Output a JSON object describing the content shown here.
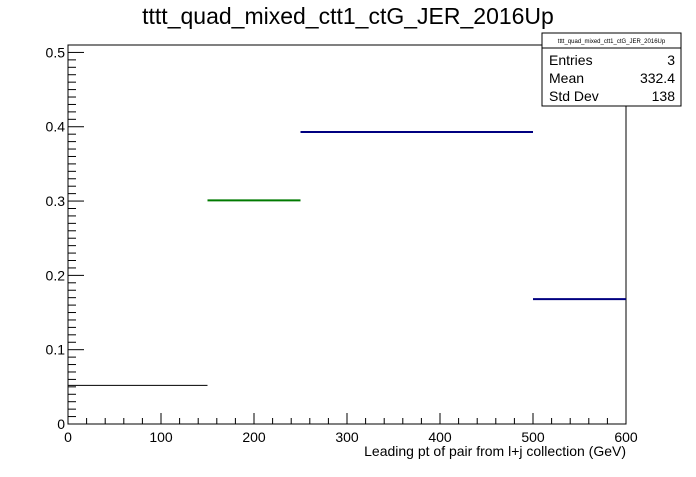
{
  "chart_data": {
    "type": "bar",
    "title": "tttt_quad_mixed_ctt1_ctG_JER_2016Up",
    "xlabel": "Leading pt of pair from l+j collection (GeV)",
    "ylabel": "",
    "xlim": [
      0,
      600
    ],
    "ylim": [
      0,
      0.51
    ],
    "x_ticks": [
      0,
      100,
      200,
      300,
      400,
      500,
      600
    ],
    "x_tick_labels": [
      "0",
      "100",
      "200",
      "300",
      "400",
      "500",
      "600"
    ],
    "y_ticks": [
      0,
      0.1,
      0.2,
      0.3,
      0.4,
      0.5
    ],
    "y_tick_labels": [
      "0",
      "0.1",
      "0.2",
      "0.3",
      "0.4",
      "0.5"
    ],
    "bins": [
      {
        "x0": 0,
        "x1": 150,
        "value": 0.052,
        "color": "#000000"
      },
      {
        "x0": 150,
        "x1": 250,
        "value": 0.301,
        "color": "#007a00"
      },
      {
        "x0": 250,
        "x1": 500,
        "value": 0.393,
        "color": "#000080"
      },
      {
        "x0": 500,
        "x1": 600,
        "value": 0.168,
        "color": "#000080"
      }
    ],
    "grid": false,
    "legend": "none",
    "stats_box": {
      "placement": "top-right",
      "title": "tttt_quad_mixed_ctt1_ctG_JER_2016Up",
      "rows": [
        {
          "label": "Entries",
          "value": "3"
        },
        {
          "label": "Mean",
          "value": "332.4"
        },
        {
          "label": "Std Dev",
          "value": "138"
        }
      ]
    }
  }
}
